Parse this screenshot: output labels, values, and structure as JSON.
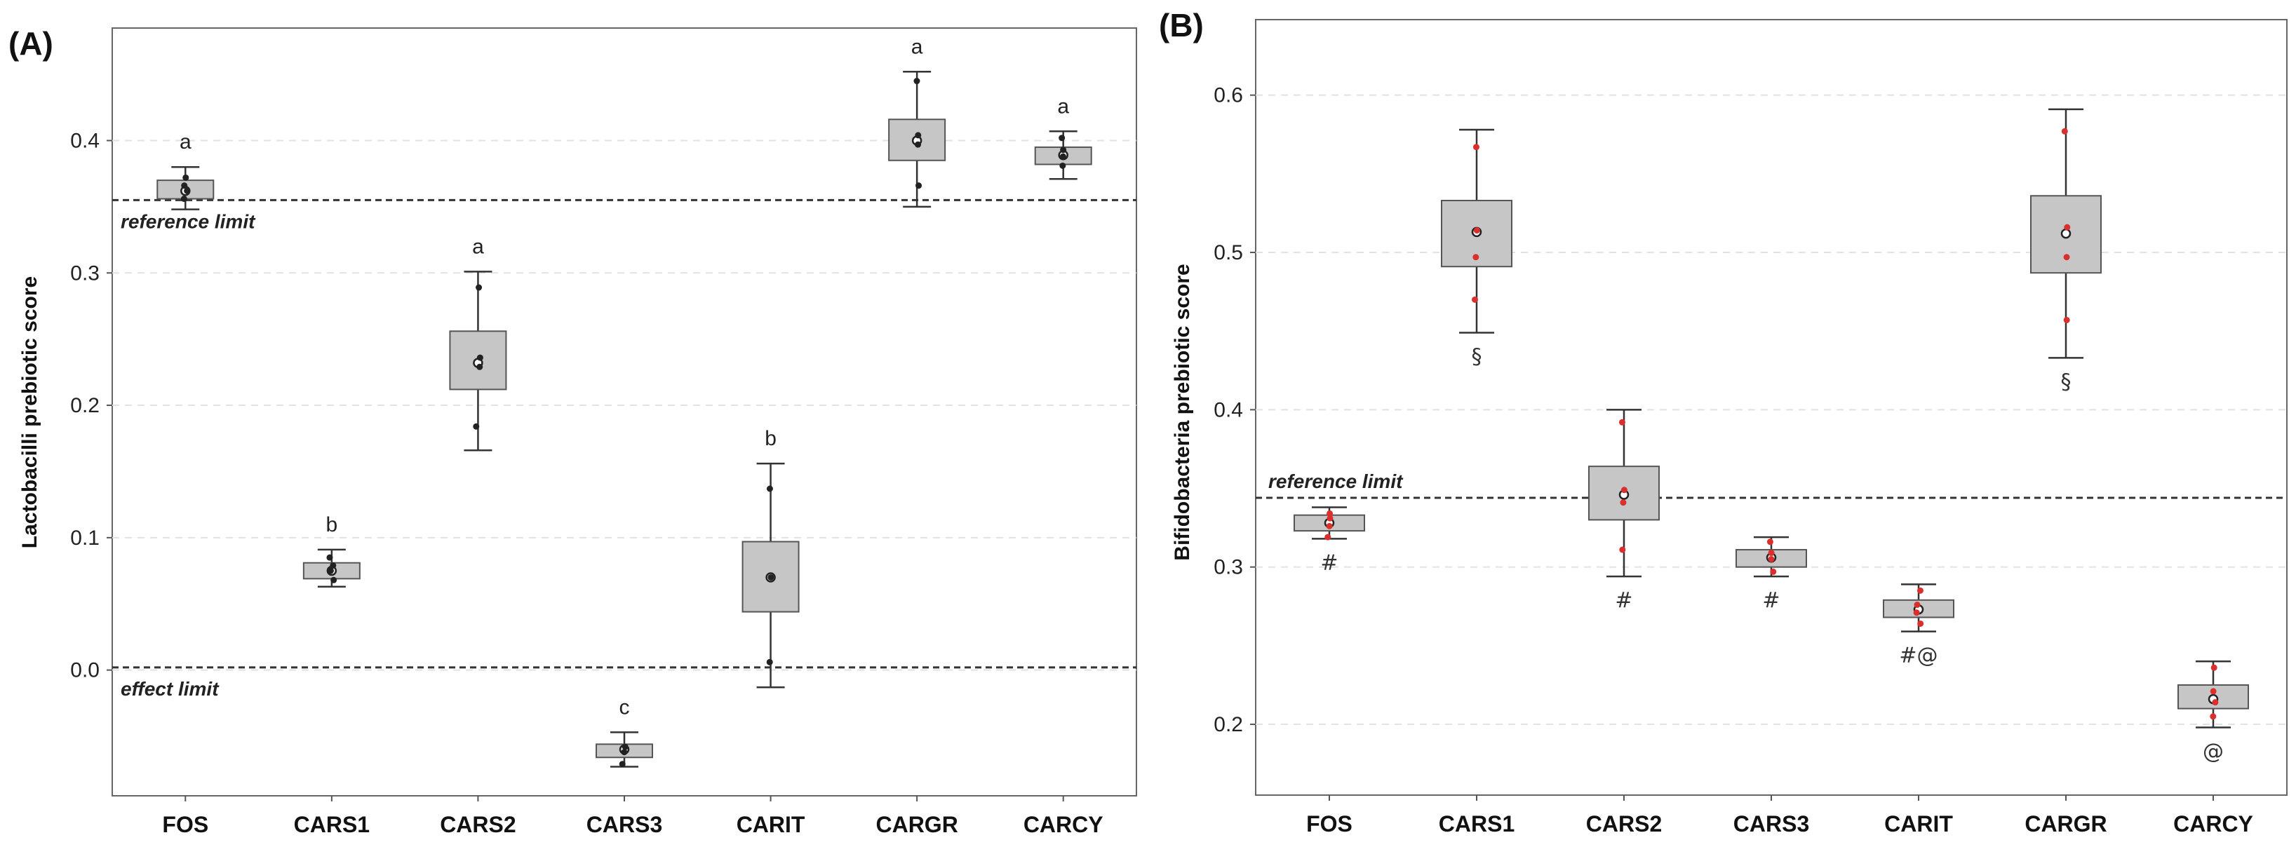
{
  "chart_data": [
    {
      "type": "box",
      "panel_label": "(A)",
      "title": "",
      "xlabel": "",
      "ylabel": "Lactobacilli prebiotic score",
      "ylim": [
        -0.095,
        0.485
      ],
      "yticks": [
        "0.0",
        "0.1",
        "0.2",
        "0.3",
        "0.4"
      ],
      "ytick_values": [
        0.0,
        0.1,
        0.2,
        0.3,
        0.4
      ],
      "categories": [
        "FOS",
        "CARS1",
        "CARS2",
        "CARS3",
        "CARIT",
        "CARGR",
        "CARCY"
      ],
      "boxes": [
        {
          "min": 0.348,
          "q1": 0.356,
          "median": 0.362,
          "q3": 0.37,
          "max": 0.38,
          "points": [
            0.356,
            0.362,
            0.366,
            0.372
          ]
        },
        {
          "min": 0.063,
          "q1": 0.069,
          "median": 0.075,
          "q3": 0.081,
          "max": 0.091,
          "points": [
            0.068,
            0.075,
            0.079,
            0.085
          ]
        },
        {
          "min": 0.166,
          "q1": 0.212,
          "median": 0.232,
          "q3": 0.256,
          "max": 0.301,
          "points": [
            0.184,
            0.229,
            0.236,
            0.289
          ]
        },
        {
          "min": -0.073,
          "q1": -0.066,
          "median": -0.06,
          "q3": -0.056,
          "max": -0.047,
          "points": [
            -0.071,
            -0.062,
            -0.058
          ]
        },
        {
          "min": -0.013,
          "q1": 0.044,
          "median": 0.07,
          "q3": 0.097,
          "max": 0.156,
          "points": [
            0.006,
            0.07,
            0.137
          ]
        },
        {
          "min": 0.35,
          "q1": 0.385,
          "median": 0.4,
          "q3": 0.416,
          "max": 0.452,
          "points": [
            0.366,
            0.397,
            0.404,
            0.445
          ]
        },
        {
          "min": 0.371,
          "q1": 0.382,
          "median": 0.389,
          "q3": 0.395,
          "max": 0.407,
          "points": [
            0.381,
            0.388,
            0.393,
            0.402
          ]
        }
      ],
      "annotations": [
        "a",
        "b",
        "a",
        "c",
        "b",
        "a",
        "a"
      ],
      "reference_lines": [
        {
          "value": 0.355,
          "label": "reference limit"
        },
        {
          "value": 0.002,
          "label": "effect limit"
        }
      ]
    },
    {
      "type": "box",
      "panel_label": "(B)",
      "title": "",
      "xlabel": "",
      "ylabel": "Bifidobacteria prebiotic score",
      "ylim": [
        0.155,
        0.648
      ],
      "yticks": [
        "0.2",
        "0.3",
        "0.4",
        "0.5",
        "0.6"
      ],
      "ytick_values": [
        0.2,
        0.3,
        0.4,
        0.5,
        0.6
      ],
      "categories": [
        "FOS",
        "CARS1",
        "CARS2",
        "CARS3",
        "CARIT",
        "CARGR",
        "CARCY"
      ],
      "boxes": [
        {
          "min": 0.318,
          "q1": 0.323,
          "median": 0.328,
          "q3": 0.333,
          "max": 0.338,
          "points": [
            0.319,
            0.326,
            0.331,
            0.334
          ]
        },
        {
          "min": 0.449,
          "q1": 0.491,
          "median": 0.513,
          "q3": 0.533,
          "max": 0.578,
          "points": [
            0.47,
            0.497,
            0.514,
            0.567
          ]
        },
        {
          "min": 0.294,
          "q1": 0.33,
          "median": 0.346,
          "q3": 0.364,
          "max": 0.4,
          "points": [
            0.311,
            0.341,
            0.349,
            0.392
          ]
        },
        {
          "min": 0.294,
          "q1": 0.3,
          "median": 0.306,
          "q3": 0.311,
          "max": 0.319,
          "points": [
            0.297,
            0.305,
            0.309,
            0.316
          ]
        },
        {
          "min": 0.259,
          "q1": 0.268,
          "median": 0.273,
          "q3": 0.279,
          "max": 0.289,
          "points": [
            0.264,
            0.271,
            0.276,
            0.285
          ]
        },
        {
          "min": 0.433,
          "q1": 0.487,
          "median": 0.512,
          "q3": 0.536,
          "max": 0.591,
          "points": [
            0.457,
            0.497,
            0.516,
            0.577
          ]
        },
        {
          "min": 0.198,
          "q1": 0.21,
          "median": 0.216,
          "q3": 0.225,
          "max": 0.24,
          "points": [
            0.205,
            0.214,
            0.221,
            0.236
          ]
        }
      ],
      "annotations": [
        "#",
        "§",
        "#",
        "#",
        "#@",
        "§",
        "@"
      ],
      "reference_lines": [
        {
          "value": 0.344,
          "label": "reference limit"
        }
      ]
    }
  ]
}
